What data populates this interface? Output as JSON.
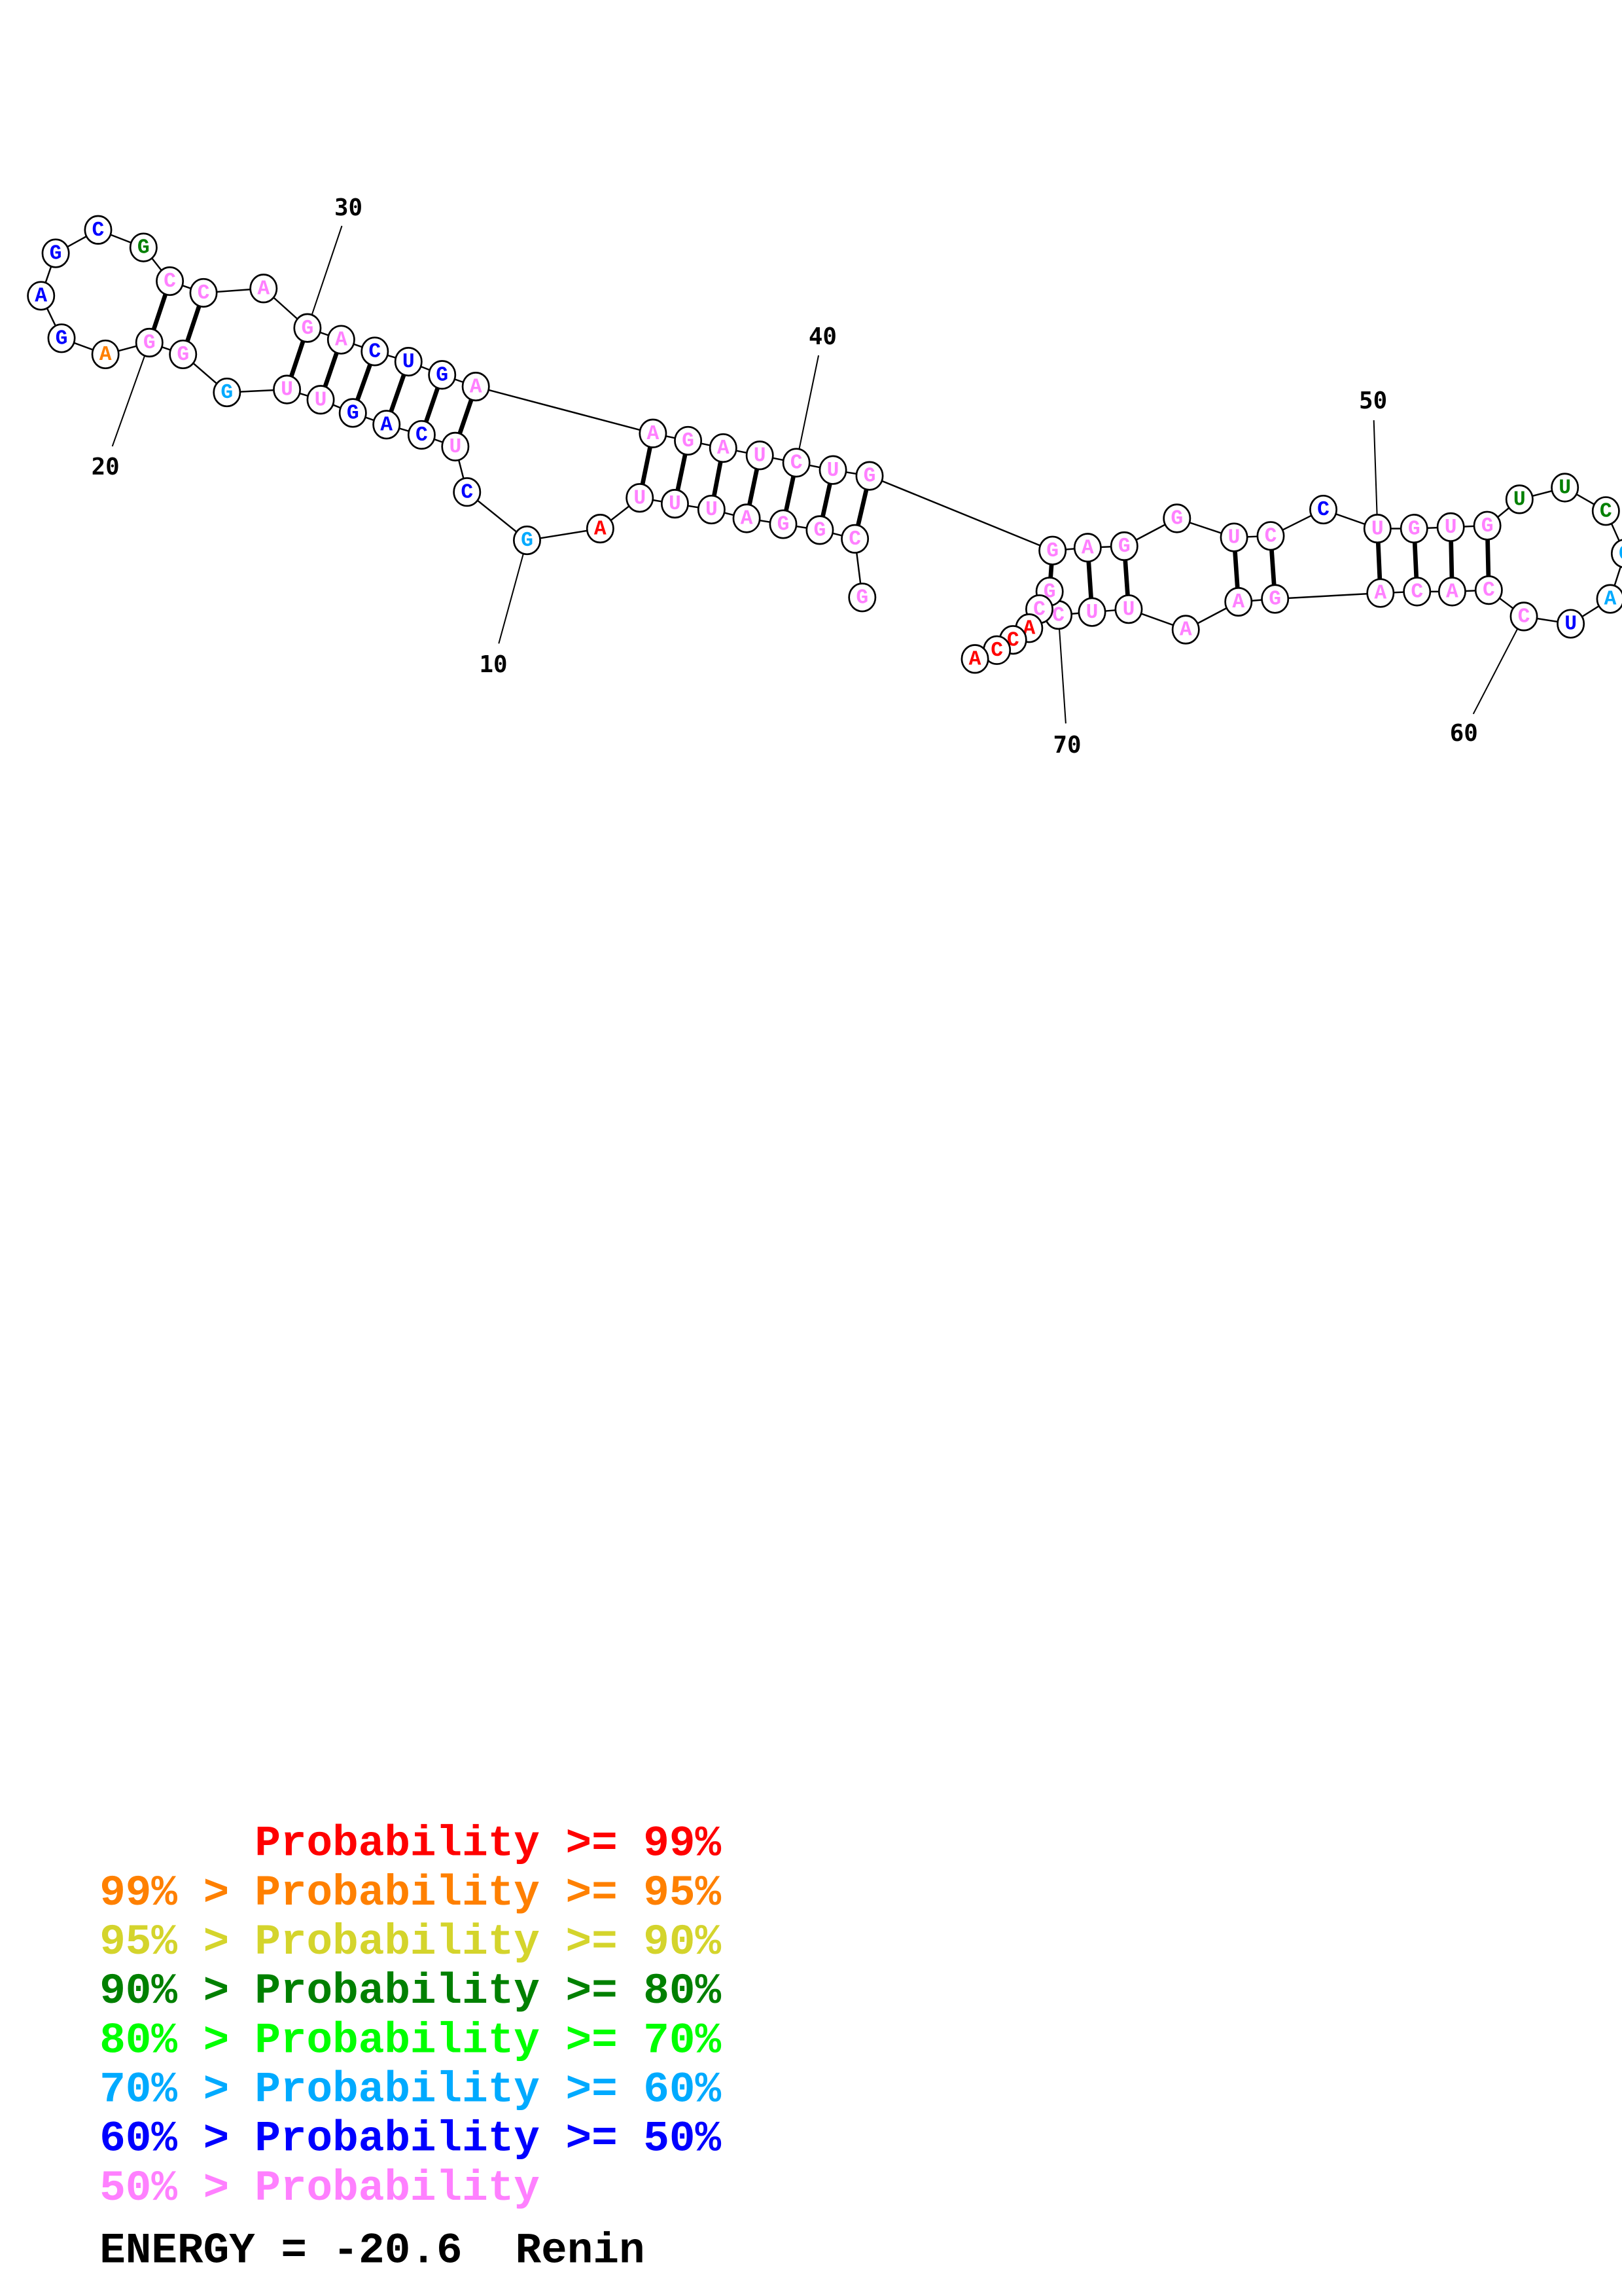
{
  "structure": {
    "sequence": [
      "G",
      "C",
      "G",
      "G",
      "A",
      "U",
      "U",
      "U",
      "A",
      "G",
      "C",
      "U",
      "C",
      "A",
      "G",
      "U",
      "U",
      "G",
      "G",
      "G",
      "A",
      "G",
      "A",
      "G",
      "C",
      "G",
      "C",
      "C",
      "A",
      "G",
      "A",
      "C",
      "U",
      "G",
      "A",
      "A",
      "G",
      "A",
      "U",
      "C",
      "U",
      "G",
      "G",
      "A",
      "G",
      "G",
      "U",
      "C",
      "C",
      "U",
      "G",
      "U",
      "G",
      "U",
      "U",
      "C",
      "C",
      "A",
      "U",
      "C",
      "C",
      "A",
      "C",
      "A",
      "G",
      "A",
      "A",
      "U",
      "U",
      "C",
      "G",
      "C",
      "A",
      "C",
      "C",
      "A"
    ],
    "probability_class": [
      7,
      7,
      7,
      7,
      7,
      7,
      7,
      7,
      0,
      5,
      6,
      7,
      6,
      6,
      6,
      7,
      7,
      5,
      7,
      7,
      1,
      6,
      6,
      6,
      6,
      3,
      7,
      7,
      7,
      7,
      7,
      6,
      6,
      6,
      7,
      7,
      7,
      7,
      7,
      7,
      7,
      7,
      7,
      7,
      7,
      7,
      7,
      7,
      6,
      7,
      7,
      7,
      7,
      3,
      3,
      3,
      5,
      5,
      6,
      7,
      7,
      7,
      7,
      7,
      7,
      7,
      7,
      7,
      7,
      7,
      7,
      7,
      0,
      0,
      0,
      0
    ],
    "pairs": [
      [
        20,
        27
      ],
      [
        19,
        28
      ],
      [
        30,
        17
      ],
      [
        31,
        16
      ],
      [
        32,
        15
      ],
      [
        33,
        14
      ],
      [
        34,
        13
      ],
      [
        35,
        12
      ],
      [
        36,
        8
      ],
      [
        37,
        7
      ],
      [
        38,
        6
      ],
      [
        39,
        5
      ],
      [
        40,
        4
      ],
      [
        41,
        3
      ],
      [
        42,
        2
      ],
      [
        43,
        71
      ],
      [
        44,
        69
      ],
      [
        45,
        68
      ],
      [
        47,
        66
      ],
      [
        48,
        65
      ],
      [
        50,
        64
      ],
      [
        51,
        63
      ],
      [
        52,
        62
      ],
      [
        53,
        61
      ]
    ],
    "position_labels": [
      {
        "index": 10,
        "text": "10"
      },
      {
        "index": 20,
        "text": "20"
      },
      {
        "index": 30,
        "text": "30"
      },
      {
        "index": 40,
        "text": "40"
      },
      {
        "index": 50,
        "text": "50"
      },
      {
        "index": 60,
        "text": "60"
      },
      {
        "index": 70,
        "text": "70"
      }
    ]
  },
  "colors": [
    "#ff0000",
    "#ff8000",
    "#d4d42c",
    "#008000",
    "#00ff00",
    "#00aaff",
    "#0000ff",
    "#ff80ff"
  ],
  "legend": [
    {
      "prefix": "",
      "text": "Probability >= 99%"
    },
    {
      "prefix": "99% >",
      "text": "Probability >= 95%"
    },
    {
      "prefix": "95% >",
      "text": "Probability >= 90%"
    },
    {
      "prefix": "90% >",
      "text": "Probability >= 80%"
    },
    {
      "prefix": "80% >",
      "text": "Probability >= 70%"
    },
    {
      "prefix": "70% >",
      "text": "Probability >= 60%"
    },
    {
      "prefix": "60% >",
      "text": "Probability >= 50%"
    },
    {
      "prefix": "50% >",
      "text": "Probability"
    }
  ],
  "footer": {
    "energy": "ENERGY = -20.6",
    "name": "Renin"
  }
}
